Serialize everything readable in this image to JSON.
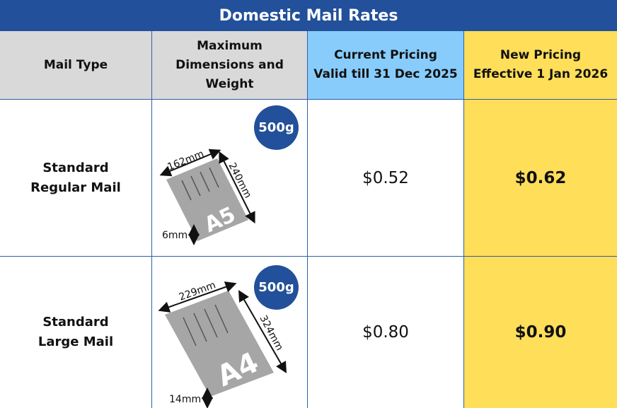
{
  "title": "Domestic Mail Rates",
  "headers": {
    "mail_type": "Mail Type",
    "dimensions": "Maximum Dimensions and Weight",
    "current_line1": "Current Pricing",
    "current_line2": "Valid till 31 Dec 2025",
    "new_line1": "New Pricing",
    "new_line2": "Effective 1 Jan 2026"
  },
  "rows": [
    {
      "type_line1": "Standard",
      "type_line2": "Regular Mail",
      "weight": "500g",
      "paper": "A5",
      "width": "162mm",
      "length": "240mm",
      "thickness": "6mm",
      "current_price": "$0.52",
      "new_price": "$0.62"
    },
    {
      "type_line1": "Standard",
      "type_line2": "Large Mail",
      "weight": "500g",
      "paper": "A4",
      "width": "229mm",
      "length": "324mm",
      "thickness": "14mm",
      "current_price": "$0.80",
      "new_price": "$0.90"
    }
  ],
  "colors": {
    "title_bg": "#22509a",
    "current_header_bg": "#88ccfb",
    "new_bg": "#ffde5a",
    "grey_header_bg": "#d9d9d9",
    "paper": "#a6a6a6"
  }
}
